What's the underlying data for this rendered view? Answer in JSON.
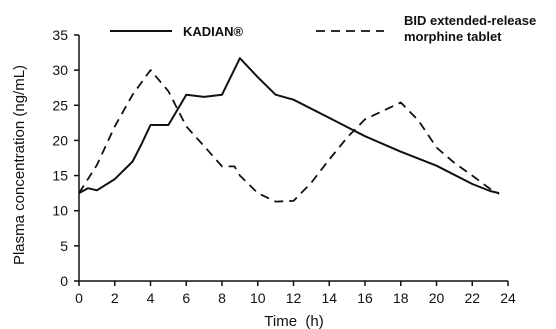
{
  "chart_data": {
    "type": "line",
    "title": "",
    "xlabel": "Time  (h)",
    "ylabel": "Plasma concentration (ng/mL)",
    "xlim": [
      0,
      24
    ],
    "ylim": [
      0,
      35
    ],
    "xticks": [
      0,
      2,
      4,
      6,
      8,
      10,
      12,
      14,
      16,
      18,
      20,
      22,
      24
    ],
    "yticks": [
      0,
      5,
      10,
      15,
      20,
      25,
      30,
      35
    ],
    "grid": false,
    "legend": "top",
    "series": [
      {
        "name": "KADIAN®",
        "style": "solid",
        "color": "#111111",
        "x": [
          0,
          0.5,
          1,
          2,
          3,
          3.5,
          4,
          5,
          6,
          7,
          8,
          9,
          10,
          11,
          12,
          14,
          16,
          18,
          20,
          22,
          23,
          23.5
        ],
        "y": [
          12.5,
          13.2,
          12.9,
          14.5,
          17,
          19.5,
          22.2,
          22.2,
          26.5,
          26.2,
          26.5,
          31.7,
          29,
          26.5,
          25.8,
          23.2,
          20.6,
          18.4,
          16.4,
          13.8,
          12.8,
          12.5
        ]
      },
      {
        "name": "BID extended-release morphine tablet",
        "style": "dashed",
        "color": "#111111",
        "x": [
          0,
          1,
          2,
          3,
          4,
          5,
          6,
          7,
          8,
          8.7,
          9,
          10,
          11,
          12,
          13,
          14,
          15,
          16,
          17,
          18,
          19,
          20,
          21,
          22,
          23,
          23.5
        ],
        "y": [
          12.5,
          16.5,
          22,
          26.5,
          30,
          27,
          22,
          19.2,
          16.3,
          16.3,
          15,
          12.5,
          11.3,
          11.4,
          14,
          17.3,
          20.4,
          23,
          24.2,
          25.4,
          22.8,
          19,
          16.8,
          15,
          13.1,
          12.4
        ]
      }
    ]
  }
}
